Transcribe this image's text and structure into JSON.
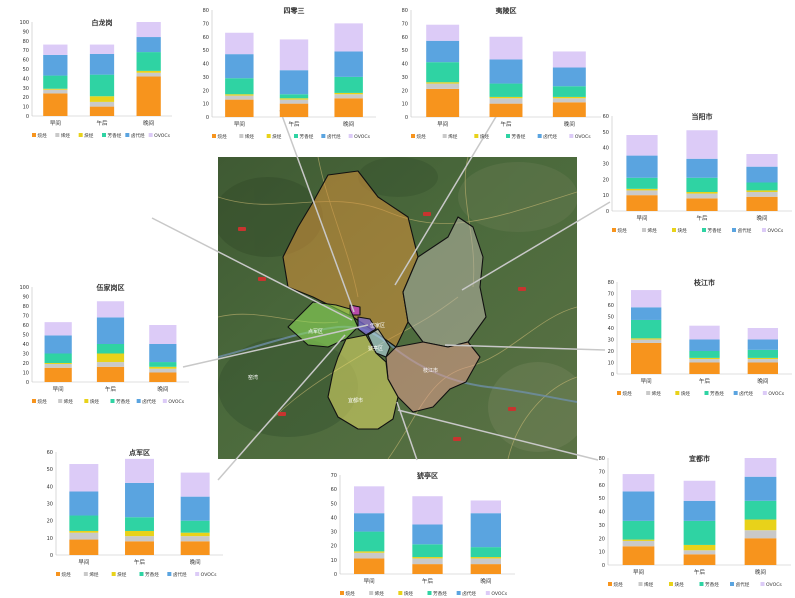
{
  "colors": {
    "alkanes": "#F7941D",
    "alkenes": "#C9C9C9",
    "alkynes": "#E8D21A",
    "aromatics": "#2FD3A3",
    "halohydrocarbons": "#5AA4E0",
    "ovocs": "#DCCBF7",
    "leader": "#c8c8c8",
    "axis": "#bfbfbf",
    "text": "#333333"
  },
  "map": {
    "region_labels": [
      "窑湾",
      "伍家区",
      "点军区",
      "猇亭区",
      "枝江市",
      "宜都市"
    ]
  },
  "chart_data": [
    {
      "type": "bar",
      "stacked": true,
      "title": "白龙岗",
      "categories": [
        "早间",
        "午后",
        "晚间"
      ],
      "ylim": [
        0,
        100
      ],
      "yticks": [
        0,
        10,
        20,
        30,
        40,
        50,
        60,
        70,
        80,
        90,
        100
      ],
      "legend": [
        "烷烃",
        "烯烃",
        "炔烃",
        "芳香烃",
        "卤代烃",
        "OVOCs"
      ],
      "series": [
        {
          "name": "烷烃",
          "values": [
            24,
            10,
            42
          ]
        },
        {
          "name": "烯烃",
          "values": [
            4,
            5,
            4
          ]
        },
        {
          "name": "炔烃",
          "values": [
            1,
            6,
            2
          ]
        },
        {
          "name": "芳香烃",
          "values": [
            14,
            23,
            20
          ]
        },
        {
          "name": "卤代烃",
          "values": [
            22,
            22,
            16
          ]
        },
        {
          "name": "OVOCs",
          "values": [
            11,
            10,
            16
          ]
        }
      ]
    },
    {
      "type": "bar",
      "stacked": true,
      "title": "四零三",
      "categories": [
        "早间",
        "午后",
        "晚间"
      ],
      "ylim": [
        0,
        80
      ],
      "yticks": [
        0,
        10,
        20,
        30,
        40,
        50,
        60,
        70,
        80
      ],
      "legend": [
        "烷烃",
        "烯烃",
        "炔烃",
        "芳香烃",
        "卤代烃",
        "OVOCs"
      ],
      "series": [
        {
          "name": "烷烃",
          "values": [
            13,
            10,
            14
          ]
        },
        {
          "name": "烯烃",
          "values": [
            3,
            3,
            3
          ]
        },
        {
          "name": "炔烃",
          "values": [
            1,
            1,
            1
          ]
        },
        {
          "name": "芳香烃",
          "values": [
            12,
            3,
            12
          ]
        },
        {
          "name": "卤代烃",
          "values": [
            18,
            18,
            19
          ]
        },
        {
          "name": "OVOCs",
          "values": [
            16,
            23,
            21
          ]
        }
      ]
    },
    {
      "type": "bar",
      "stacked": true,
      "title": "夷陵区",
      "categories": [
        "早间",
        "午后",
        "晚间"
      ],
      "ylim": [
        0,
        80
      ],
      "yticks": [
        0,
        10,
        20,
        30,
        40,
        50,
        60,
        70,
        80
      ],
      "legend": [
        "烷烃",
        "烯烃",
        "炔烃",
        "芳香烃",
        "卤代烃",
        "OVOCs"
      ],
      "series": [
        {
          "name": "烷烃",
          "values": [
            21,
            10,
            11
          ]
        },
        {
          "name": "烯烃",
          "values": [
            4,
            4,
            3
          ]
        },
        {
          "name": "炔烃",
          "values": [
            1,
            1,
            1
          ]
        },
        {
          "name": "芳香烃",
          "values": [
            15,
            10,
            8
          ]
        },
        {
          "name": "卤代烃",
          "values": [
            16,
            18,
            14
          ]
        },
        {
          "name": "OVOCs",
          "values": [
            12,
            17,
            12
          ]
        }
      ]
    },
    {
      "type": "bar",
      "stacked": true,
      "title": "当阳市",
      "categories": [
        "早间",
        "午后",
        "晚间"
      ],
      "ylim": [
        0,
        60
      ],
      "yticks": [
        0,
        10,
        20,
        30,
        40,
        50,
        60
      ],
      "legend": [
        "烷烃",
        "烯烃",
        "炔烃",
        "芳香烃",
        "卤代烃",
        "OVOCs"
      ],
      "series": [
        {
          "name": "烷烃",
          "values": [
            10,
            8,
            9
          ]
        },
        {
          "name": "烯烃",
          "values": [
            3,
            3,
            3
          ]
        },
        {
          "name": "炔烃",
          "values": [
            1,
            1,
            1
          ]
        },
        {
          "name": "芳香烃",
          "values": [
            7,
            9,
            5
          ]
        },
        {
          "name": "卤代烃",
          "values": [
            14,
            12,
            10
          ]
        },
        {
          "name": "OVOCs",
          "values": [
            13,
            18,
            8
          ]
        }
      ]
    },
    {
      "type": "bar",
      "stacked": true,
      "title": "伍家岗区",
      "categories": [
        "早间",
        "午后",
        "晚间"
      ],
      "ylim": [
        0,
        100
      ],
      "yticks": [
        0,
        10,
        20,
        30,
        40,
        50,
        60,
        70,
        80,
        90,
        100
      ],
      "legend": [
        "烷烃",
        "烯烃",
        "炔烃",
        "芳香烃",
        "卤代烃",
        "OVOCs"
      ],
      "series": [
        {
          "name": "烷烃",
          "values": [
            15,
            16,
            10
          ]
        },
        {
          "name": "烯烃",
          "values": [
            4,
            5,
            4
          ]
        },
        {
          "name": "炔烃",
          "values": [
            1,
            9,
            2
          ]
        },
        {
          "name": "芳香烃",
          "values": [
            10,
            10,
            5
          ]
        },
        {
          "name": "卤代烃",
          "values": [
            19,
            28,
            19
          ]
        },
        {
          "name": "OVOCs",
          "values": [
            14,
            17,
            20
          ]
        }
      ]
    },
    {
      "type": "bar",
      "stacked": true,
      "title": "枝江市",
      "categories": [
        "早间",
        "午后",
        "晚间"
      ],
      "ylim": [
        0,
        80
      ],
      "yticks": [
        0,
        10,
        20,
        30,
        40,
        50,
        60,
        70,
        80
      ],
      "legend": [
        "烷烃",
        "烯烃",
        "炔烃",
        "芳香烃",
        "卤代烃",
        "OVOCs"
      ],
      "series": [
        {
          "name": "烷烃",
          "values": [
            27,
            10,
            10
          ]
        },
        {
          "name": "烯烃",
          "values": [
            3,
            3,
            3
          ]
        },
        {
          "name": "炔烃",
          "values": [
            1,
            1,
            1
          ]
        },
        {
          "name": "芳香烃",
          "values": [
            16,
            6,
            7
          ]
        },
        {
          "name": "卤代烃",
          "values": [
            11,
            10,
            9
          ]
        },
        {
          "name": "OVOCs",
          "values": [
            15,
            12,
            10
          ]
        }
      ]
    },
    {
      "type": "bar",
      "stacked": true,
      "title": "点军区",
      "categories": [
        "早间",
        "午后",
        "晚间"
      ],
      "ylim": [
        0,
        60
      ],
      "yticks": [
        0,
        10,
        20,
        30,
        40,
        50,
        60
      ],
      "legend": [
        "烷烃",
        "烯烃",
        "炔烃",
        "芳香烃",
        "卤代烃",
        "OVOCs"
      ],
      "series": [
        {
          "name": "烷烃",
          "values": [
            9,
            8,
            8
          ]
        },
        {
          "name": "烯烃",
          "values": [
            4,
            3,
            3
          ]
        },
        {
          "name": "炔烃",
          "values": [
            1,
            3,
            2
          ]
        },
        {
          "name": "芳香烃",
          "values": [
            9,
            8,
            7
          ]
        },
        {
          "name": "卤代烃",
          "values": [
            14,
            20,
            14
          ]
        },
        {
          "name": "OVOCs",
          "values": [
            16,
            14,
            14
          ]
        }
      ]
    },
    {
      "type": "bar",
      "stacked": true,
      "title": "猇亭区",
      "categories": [
        "早间",
        "午后",
        "晚间"
      ],
      "ylim": [
        0,
        70
      ],
      "yticks": [
        0,
        10,
        20,
        30,
        40,
        50,
        60,
        70
      ],
      "legend": [
        "烷烃",
        "烯烃",
        "炔烃",
        "芳香烃",
        "卤代烃",
        "OVOCs"
      ],
      "series": [
        {
          "name": "烷烃",
          "values": [
            11,
            7,
            7
          ]
        },
        {
          "name": "烯烃",
          "values": [
            4,
            4,
            4
          ]
        },
        {
          "name": "炔烃",
          "values": [
            1,
            1,
            1
          ]
        },
        {
          "name": "芳香烃",
          "values": [
            14,
            9,
            7
          ]
        },
        {
          "name": "卤代烃",
          "values": [
            13,
            14,
            24
          ]
        },
        {
          "name": "OVOCs",
          "values": [
            19,
            20,
            9
          ]
        }
      ]
    },
    {
      "type": "bar",
      "stacked": true,
      "title": "宜都市",
      "categories": [
        "早间",
        "午后",
        "晚间"
      ],
      "ylim": [
        0,
        80
      ],
      "yticks": [
        0,
        10,
        20,
        30,
        40,
        50,
        60,
        70,
        80
      ],
      "legend": [
        "烷烃",
        "烯烃",
        "炔烃",
        "芳香烃",
        "卤代烃",
        "OVOCs"
      ],
      "series": [
        {
          "name": "烷烃",
          "values": [
            14,
            8,
            20
          ]
        },
        {
          "name": "烯烃",
          "values": [
            4,
            3,
            6
          ]
        },
        {
          "name": "炔烃",
          "values": [
            1,
            4,
            8
          ]
        },
        {
          "name": "芳香烃",
          "values": [
            14,
            18,
            14
          ]
        },
        {
          "name": "卤代烃",
          "values": [
            22,
            15,
            18
          ]
        },
        {
          "name": "OVOCs",
          "values": [
            13,
            15,
            14
          ]
        }
      ]
    }
  ]
}
